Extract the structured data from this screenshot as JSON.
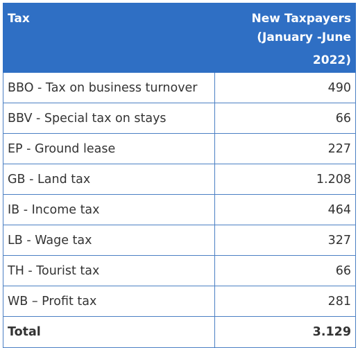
{
  "table": {
    "header": {
      "tax": "Tax",
      "value_line1": "New Taxpayers",
      "value_line2": "(January -June 2022)"
    },
    "rows": [
      {
        "name": "BBO - Tax on business turnover",
        "value": "490"
      },
      {
        "name": "BBV - Special tax on stays",
        "value": "66"
      },
      {
        "name": "EP - Ground lease",
        "value": "227"
      },
      {
        "name": "GB - Land tax",
        "value": "1.208"
      },
      {
        "name": "IB - Income tax",
        "value": "464"
      },
      {
        "name": "LB - Wage tax",
        "value": "327"
      },
      {
        "name": "TH - Tourist tax",
        "value": "66"
      },
      {
        "name": "WB – Profit tax",
        "value": "281"
      }
    ],
    "total": {
      "label": "Total",
      "value": "3.129"
    }
  },
  "colors": {
    "header_background": "#2f6fc4",
    "border": "#4a7fc3",
    "text": "#333333"
  }
}
